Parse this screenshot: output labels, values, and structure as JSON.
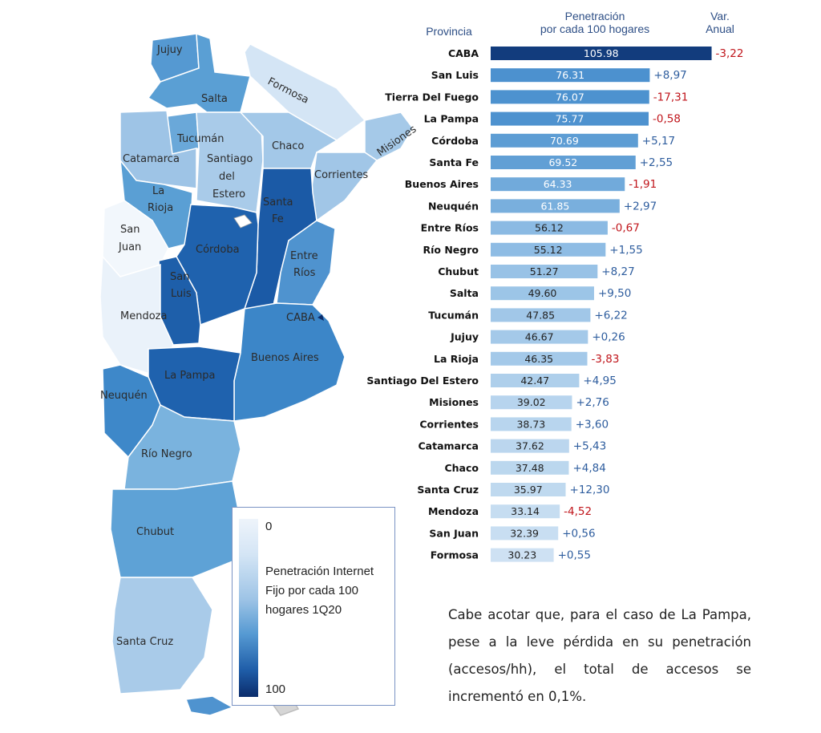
{
  "headers": {
    "province": "Provincia",
    "penetration_line1": "Penetración",
    "penetration_line2": "por cada 100 hogares",
    "var_line1": "Var.",
    "var_line2": "Anual"
  },
  "map_labels": {
    "jujuy": "Jujuy",
    "salta": "Salta",
    "formosa": "Formosa",
    "tucuman": "Tucumán",
    "chaco": "Chaco",
    "misiones": "Misiones",
    "catamarca": "Catamarca",
    "santiago1": "Santiago",
    "santiago2": "del",
    "santiago3": "Estero",
    "corrientes": "Corrientes",
    "larioja1": "La",
    "larioja2": "Rioja",
    "santafe1": "Santa",
    "santafe2": "Fe",
    "sanjuan1": "San",
    "sanjuan2": "Juan",
    "cordoba": "Córdoba",
    "entrerios1": "Entre",
    "entrerios2": "Ríos",
    "sanluis1": "San",
    "sanluis2": "Luis",
    "mendoza": "Mendoza",
    "caba": "CABA",
    "buenosaires": "Buenos Aires",
    "lapampa": "La Pampa",
    "neuquen": "Neuquén",
    "rionegro": "Río Negro",
    "chubut": "Chubut",
    "santacruz": "Santa Cruz"
  },
  "legend": {
    "min": "0",
    "max": "100",
    "title": "Penetración Internet Fijo por cada 100 hogares 1Q20"
  },
  "note": "Cabe acotar que, para el caso de La Pampa, pese a la leve pérdida en su penetración (accesos/hh), el total de accesos se incrementó en 0,1%.",
  "colors": {
    "positive": "#2e5d9e",
    "negative": "#c0151b",
    "scale": [
      "#eef4fb",
      "#d4e5f5",
      "#9ec4e6",
      "#5599d2",
      "#1f5da8",
      "#0b2c6b"
    ]
  },
  "chart_data": {
    "type": "bar",
    "title": "Penetración por cada 100 hogares",
    "xlabel": "Provincia",
    "ylabel": "Penetración por cada 100 hogares",
    "ylim": [
      0,
      106
    ],
    "categories": [
      "CABA",
      "San Luis",
      "Tierra Del Fuego",
      "La Pampa",
      "Córdoba",
      "Santa Fe",
      "Buenos Aires",
      "Neuquén",
      "Entre Ríos",
      "Río Negro",
      "Chubut",
      "Salta",
      "Tucumán",
      "Jujuy",
      "La Rioja",
      "Santiago Del Estero",
      "Misiones",
      "Corrientes",
      "Catamarca",
      "Chaco",
      "Santa Cruz",
      "Mendoza",
      "San Juan",
      "Formosa"
    ],
    "values": [
      105.98,
      76.31,
      76.07,
      75.77,
      70.69,
      69.52,
      64.33,
      61.85,
      56.12,
      55.12,
      51.27,
      49.6,
      47.85,
      46.67,
      46.35,
      42.47,
      39.02,
      38.73,
      37.62,
      37.48,
      35.97,
      33.14,
      32.39,
      30.23
    ],
    "value_labels": [
      "105.98",
      "76.31",
      "76.07",
      "75.77",
      "70.69",
      "69.52",
      "64.33",
      "61.85",
      "56.12",
      "55.12",
      "51.27",
      "49.60",
      "47.85",
      "46.67",
      "46.35",
      "42.47",
      "39.02",
      "38.73",
      "37.62",
      "37.48",
      "35.97",
      "33.14",
      "32.39",
      "30.23"
    ],
    "var_labels": [
      "-3,22",
      "+8,97",
      "-17,31",
      "-0,58",
      "+5,17",
      "+2,55",
      "-1,91",
      "+2,97",
      "-0,67",
      "+1,55",
      "+8,27",
      "+9,50",
      "+6,22",
      "+0,26",
      "-3,83",
      "+4,95",
      "+2,76",
      "+3,60",
      "+5,43",
      "+4,84",
      "+12,30",
      "-4,52",
      "+0,56",
      "+0,55"
    ],
    "var_values": [
      -3.22,
      8.97,
      -17.31,
      -0.58,
      5.17,
      2.55,
      -1.91,
      2.97,
      -0.67,
      1.55,
      8.27,
      9.5,
      6.22,
      0.26,
      -3.83,
      4.95,
      2.76,
      3.6,
      5.43,
      4.84,
      12.3,
      -4.52,
      0.56,
      0.55
    ]
  }
}
